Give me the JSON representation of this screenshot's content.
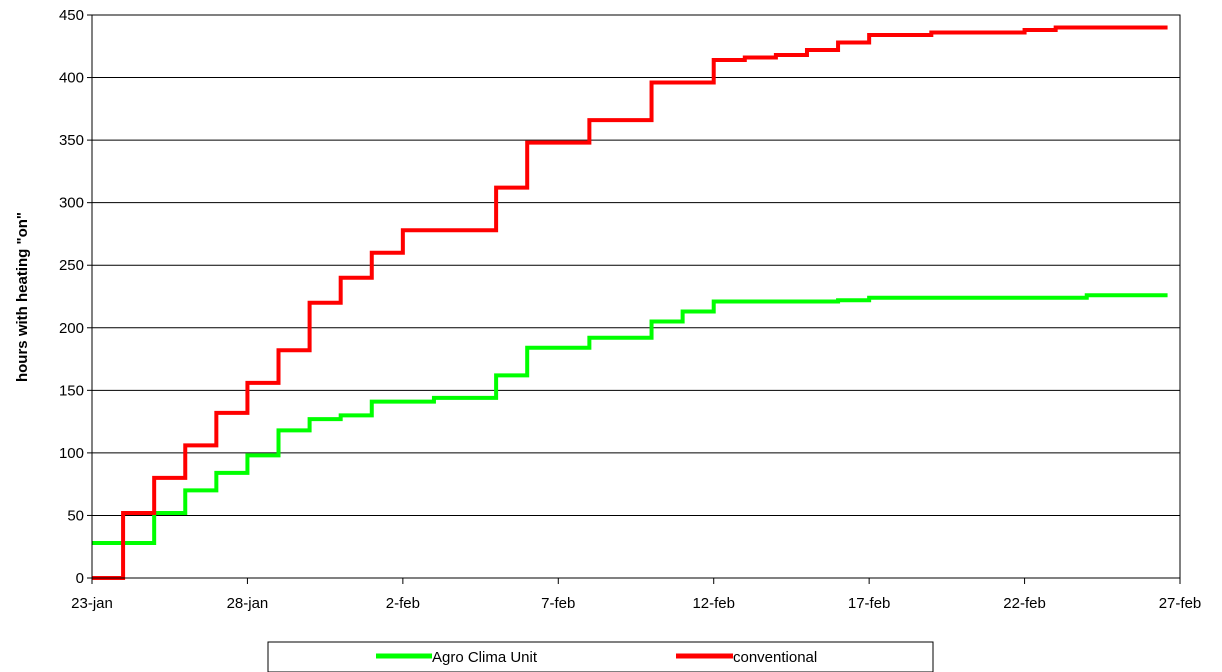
{
  "chart_data": {
    "type": "line",
    "step": true,
    "title": "",
    "xlabel": "",
    "ylabel": "hours with heating \"on\"",
    "x_tick_labels": [
      "23-jan",
      "28-jan",
      "2-feb",
      "7-feb",
      "12-feb",
      "17-feb",
      "22-feb",
      "27-feb"
    ],
    "xlim": [
      "23-jan",
      "27-feb"
    ],
    "ylim": [
      0,
      450
    ],
    "y_ticks": [
      0,
      50,
      100,
      150,
      200,
      250,
      300,
      350,
      400,
      450
    ],
    "grid": {
      "horizontal": true,
      "vertical": false
    },
    "legend": {
      "position": "bottom"
    },
    "series": [
      {
        "name": "Agro Clima Unit",
        "color": "#00ff00",
        "points": [
          [
            "23-jan",
            28
          ],
          [
            "24-jan",
            28
          ],
          [
            "25-jan",
            52
          ],
          [
            "25-jan",
            52
          ],
          [
            "26-jan",
            70
          ],
          [
            "27-jan",
            84
          ],
          [
            "28-jan",
            98
          ],
          [
            "29-jan",
            111
          ],
          [
            "29-jan",
            118
          ],
          [
            "30-jan",
            127
          ],
          [
            "31-jan",
            130
          ],
          [
            "1-feb",
            141
          ],
          [
            "2-feb",
            141
          ],
          [
            "3-feb",
            144
          ],
          [
            "4-feb",
            144
          ],
          [
            "5-feb",
            162
          ],
          [
            "6-feb",
            176
          ],
          [
            "6-feb",
            184
          ],
          [
            "7-feb",
            184
          ],
          [
            "8-feb",
            192
          ],
          [
            "9-feb",
            192
          ],
          [
            "10-feb",
            205
          ],
          [
            "11-feb",
            213
          ],
          [
            "12-feb",
            221
          ],
          [
            "13-feb",
            221
          ],
          [
            "14-feb",
            221
          ],
          [
            "15-feb",
            221
          ],
          [
            "16-feb",
            222
          ],
          [
            "17-feb",
            224
          ],
          [
            "18-feb",
            224
          ],
          [
            "19-feb",
            224
          ],
          [
            "20-feb",
            224
          ],
          [
            "21-feb",
            224
          ],
          [
            "22-feb",
            224
          ],
          [
            "23-feb",
            224
          ],
          [
            "24-feb",
            226
          ],
          [
            "25-feb",
            226
          ],
          [
            "26-feb",
            226
          ]
        ]
      },
      {
        "name": "conventional",
        "color": "#ff0000",
        "points": [
          [
            "23-jan",
            0
          ],
          [
            "24-jan",
            52
          ],
          [
            "25-jan",
            80
          ],
          [
            "26-jan",
            106
          ],
          [
            "27-jan",
            132
          ],
          [
            "28-jan",
            156
          ],
          [
            "29-jan",
            156
          ],
          [
            "29-jan",
            182
          ],
          [
            "30-jan",
            202
          ],
          [
            "30-jan",
            220
          ],
          [
            "31-jan",
            240
          ],
          [
            "1-feb",
            260
          ],
          [
            "2-feb",
            278
          ],
          [
            "3-feb",
            278
          ],
          [
            "4-feb",
            278
          ],
          [
            "5-feb",
            312
          ],
          [
            "6-feb",
            330
          ],
          [
            "6-feb",
            348
          ],
          [
            "7-feb",
            348
          ],
          [
            "8-feb",
            366
          ],
          [
            "9-feb",
            366
          ],
          [
            "10-feb",
            396
          ],
          [
            "11-feb",
            396
          ],
          [
            "12-feb",
            414
          ],
          [
            "13-feb",
            416
          ],
          [
            "14-feb",
            418
          ],
          [
            "15-feb",
            422
          ],
          [
            "16-feb",
            428
          ],
          [
            "17-feb",
            434
          ],
          [
            "18-feb",
            434
          ],
          [
            "19-feb",
            436
          ],
          [
            "20-feb",
            436
          ],
          [
            "21-feb",
            436
          ],
          [
            "22-feb",
            438
          ],
          [
            "23-feb",
            440
          ],
          [
            "24-feb",
            440
          ],
          [
            "25-feb",
            440
          ],
          [
            "26-feb",
            440
          ]
        ]
      }
    ]
  }
}
